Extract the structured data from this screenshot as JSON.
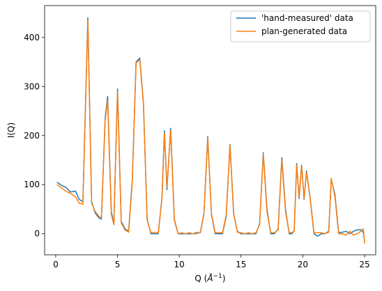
{
  "chart_data": {
    "type": "line",
    "xlabel": "Q (Å⁻¹)",
    "xlabel_parts": {
      "base": "Q (",
      "sym": "Å",
      "exp": "−1",
      "close": ")"
    },
    "ylabel": "I(Q)",
    "xlim": [
      -0.9,
      25.9
    ],
    "ylim": [
      -43,
      465
    ],
    "xticks": [
      0,
      5,
      10,
      15,
      20,
      25
    ],
    "yticks": [
      0,
      100,
      200,
      300,
      400
    ],
    "grid": false,
    "legend_position": "top-right",
    "series": [
      {
        "name": "'hand-measured' data",
        "color": "#1f77b4",
        "x": [
          0.1,
          0.5,
          0.8,
          1.2,
          1.6,
          1.9,
          2.2,
          2.6,
          2.9,
          3.2,
          3.5,
          3.7,
          4.0,
          4.2,
          4.5,
          4.7,
          5.0,
          5.3,
          5.6,
          5.9,
          6.2,
          6.5,
          6.8,
          7.1,
          7.4,
          7.7,
          8.0,
          8.3,
          8.6,
          8.8,
          9.0,
          9.3,
          9.6,
          9.9,
          10.2,
          10.5,
          10.8,
          11.1,
          11.4,
          11.7,
          12.0,
          12.3,
          12.6,
          12.9,
          13.2,
          13.5,
          13.8,
          14.1,
          14.4,
          14.7,
          15.0,
          15.3,
          15.6,
          15.9,
          16.2,
          16.5,
          16.8,
          17.1,
          17.4,
          17.7,
          18.0,
          18.3,
          18.6,
          18.9,
          19.1,
          19.3,
          19.5,
          19.7,
          19.9,
          20.1,
          20.3,
          20.6,
          20.9,
          21.2,
          21.5,
          21.8,
          22.1,
          22.3,
          22.6,
          22.9,
          23.2,
          23.5,
          23.8,
          24.1,
          24.4,
          24.7,
          24.9,
          25.0
        ],
        "y": [
          105,
          98,
          95,
          85,
          87,
          70,
          65,
          440,
          65,
          42,
          32,
          30,
          235,
          280,
          45,
          20,
          295,
          25,
          10,
          5,
          110,
          350,
          358,
          265,
          30,
          0,
          0,
          0,
          75,
          210,
          90,
          215,
          30,
          0,
          0,
          0,
          0,
          0,
          2,
          2,
          40,
          198,
          40,
          0,
          0,
          0,
          35,
          182,
          40,
          5,
          0,
          0,
          0,
          0,
          0,
          20,
          165,
          50,
          0,
          0,
          10,
          155,
          50,
          0,
          0,
          5,
          143,
          72,
          140,
          70,
          128,
          70,
          0,
          -5,
          0,
          0,
          5,
          110,
          80,
          2,
          3,
          5,
          0,
          5,
          8,
          8,
          2,
          -15
        ]
      },
      {
        "name": "plan-generated data",
        "color": "#ff7f0e",
        "x": [
          0.1,
          0.5,
          0.8,
          1.2,
          1.6,
          1.9,
          2.2,
          2.6,
          2.9,
          3.2,
          3.5,
          3.7,
          4.0,
          4.2,
          4.5,
          4.7,
          5.0,
          5.3,
          5.6,
          5.9,
          6.2,
          6.5,
          6.8,
          7.1,
          7.4,
          7.7,
          8.0,
          8.3,
          8.6,
          8.8,
          9.0,
          9.3,
          9.6,
          9.9,
          10.2,
          10.5,
          10.8,
          11.1,
          11.4,
          11.7,
          12.0,
          12.3,
          12.6,
          12.9,
          13.2,
          13.5,
          13.8,
          14.1,
          14.4,
          14.7,
          15.0,
          15.3,
          15.6,
          15.9,
          16.2,
          16.5,
          16.8,
          17.1,
          17.4,
          17.7,
          18.0,
          18.3,
          18.6,
          18.9,
          19.1,
          19.3,
          19.5,
          19.7,
          19.9,
          20.1,
          20.3,
          20.6,
          20.9,
          21.2,
          21.5,
          21.8,
          22.1,
          22.3,
          22.6,
          22.9,
          23.2,
          23.5,
          23.8,
          24.1,
          24.4,
          24.7,
          24.9,
          25.0
        ],
        "y": [
          100,
          93,
          87,
          82,
          75,
          62,
          60,
          435,
          62,
          45,
          35,
          32,
          230,
          272,
          40,
          18,
          290,
          22,
          8,
          3,
          105,
          348,
          355,
          262,
          28,
          2,
          3,
          2,
          72,
          205,
          95,
          210,
          28,
          0,
          2,
          0,
          2,
          0,
          0,
          3,
          42,
          195,
          42,
          2,
          2,
          2,
          38,
          180,
          42,
          3,
          2,
          0,
          2,
          0,
          2,
          18,
          162,
          45,
          2,
          2,
          8,
          150,
          45,
          2,
          2,
          5,
          140,
          75,
          138,
          72,
          125,
          72,
          2,
          2,
          2,
          0,
          3,
          113,
          75,
          0,
          0,
          -3,
          5,
          -3,
          0,
          5,
          10,
          -20
        ]
      }
    ]
  }
}
